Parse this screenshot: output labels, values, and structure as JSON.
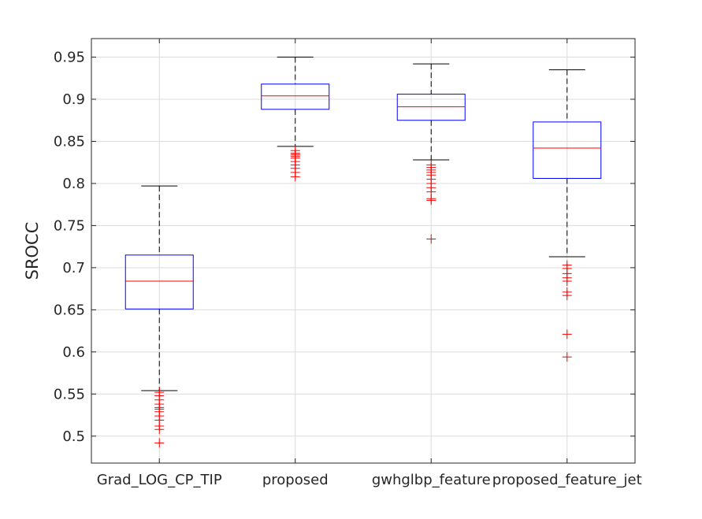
{
  "chart_data": {
    "type": "box",
    "ylabel": "SROCC",
    "ylim": [
      0.468,
      0.972
    ],
    "yticks": [
      0.5,
      0.55,
      0.6,
      0.65,
      0.7,
      0.75,
      0.8,
      0.85,
      0.9,
      0.95
    ],
    "ytick_labels": [
      "0.5",
      "0.55",
      "0.6",
      "0.65",
      "0.7",
      "0.75",
      "0.8",
      "0.85",
      "0.9",
      "0.95"
    ],
    "grid": true,
    "colors": {
      "box": "#0000ff",
      "median": "#ff0000",
      "whisker": "#000000",
      "outlier": "#ff0000",
      "grid": "#dcdcdc",
      "axes": "#262626"
    },
    "categories": [
      "Grad_LOG_CP_TIP",
      "proposed",
      "gwhglbp_feature",
      "proposed_feature_jet"
    ],
    "boxes": [
      {
        "category": "Grad_LOG_CP_TIP",
        "whisker_low": 0.554,
        "q1": 0.651,
        "median": 0.684,
        "q3": 0.715,
        "whisker_high": 0.797,
        "outliers": [
          0.552,
          0.548,
          0.543,
          0.538,
          0.534,
          0.532,
          0.529,
          0.524,
          0.519,
          0.512,
          0.508,
          0.492
        ]
      },
      {
        "category": "proposed",
        "whisker_low": 0.844,
        "q1": 0.888,
        "median": 0.904,
        "q3": 0.918,
        "whisker_high": 0.95,
        "outliers": [
          0.839,
          0.836,
          0.834,
          0.832,
          0.83,
          0.826,
          0.822,
          0.818,
          0.813,
          0.808
        ]
      },
      {
        "category": "gwhglbp_feature",
        "whisker_low": 0.828,
        "q1": 0.875,
        "median": 0.891,
        "q3": 0.906,
        "whisker_high": 0.942,
        "outliers": [
          0.822,
          0.819,
          0.816,
          0.813,
          0.81,
          0.805,
          0.8,
          0.795,
          0.79,
          0.782,
          0.78,
          0.734
        ]
      },
      {
        "category": "proposed_feature_jet",
        "whisker_low": 0.713,
        "q1": 0.806,
        "median": 0.842,
        "q3": 0.873,
        "whisker_high": 0.935,
        "outliers": [
          0.703,
          0.699,
          0.693,
          0.688,
          0.684,
          0.671,
          0.667,
          0.621,
          0.594
        ]
      }
    ]
  }
}
